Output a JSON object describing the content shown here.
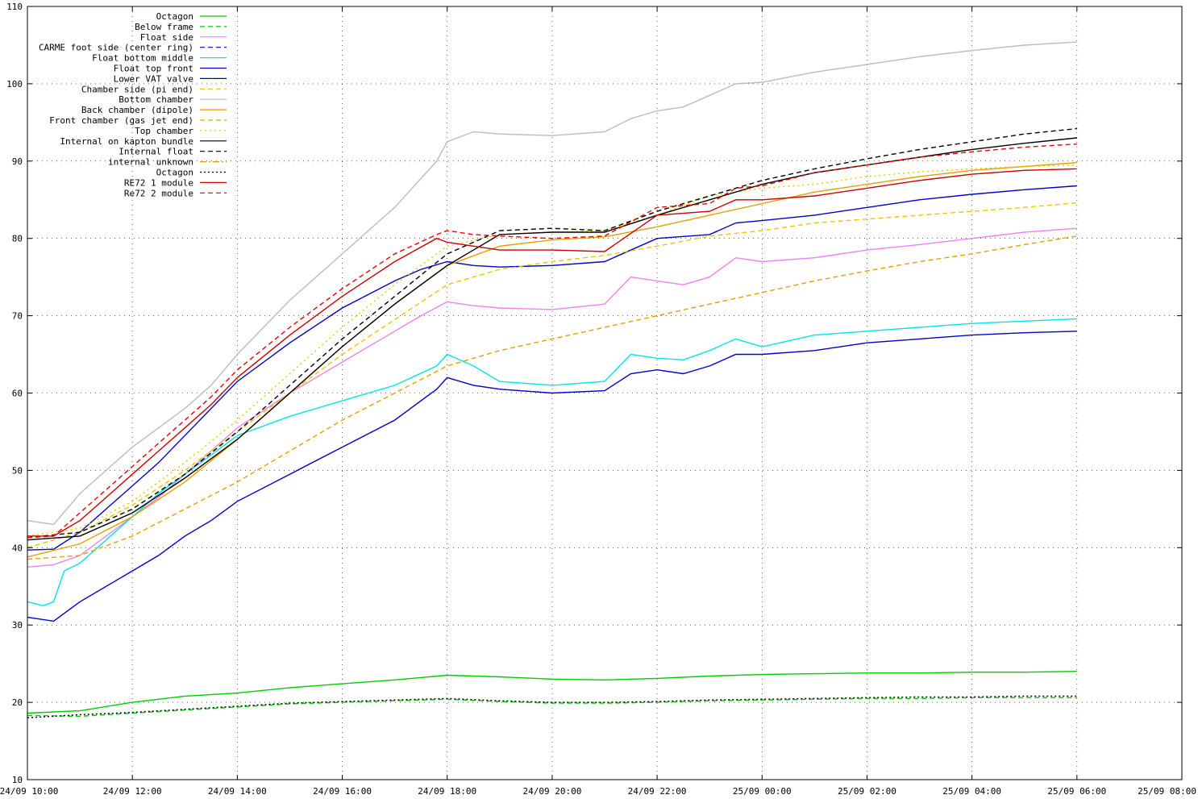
{
  "chart_data": {
    "type": "line",
    "title": "",
    "xlabel": "",
    "ylabel": "",
    "x_tick_labels": [
      "24/09 10:00",
      "24/09 12:00",
      "24/09 14:00",
      "24/09 16:00",
      "24/09 18:00",
      "24/09 20:00",
      "24/09 22:00",
      "25/09 00:00",
      "25/09 02:00",
      "25/09 04:00",
      "25/09 06:00",
      "25/09 08:00"
    ],
    "y_tick_labels": [
      "10",
      "20",
      "30",
      "40",
      "50",
      "60",
      "70",
      "80",
      "90",
      "100",
      "110"
    ],
    "xlim": [
      0,
      22
    ],
    "ylim": [
      10,
      110
    ],
    "x_unit": "hours since 24/09 10:00",
    "grid": true,
    "legend_position": "top-left",
    "series": [
      {
        "name": "Octagon",
        "color": "#00cc00",
        "dash": "solid",
        "x": [
          0,
          1,
          2,
          3,
          4,
          5,
          6,
          7,
          8,
          9,
          10,
          11,
          12,
          13,
          14,
          15,
          16,
          17,
          18,
          19,
          20
        ],
        "y": [
          18.6,
          18.9,
          20.0,
          20.8,
          21.2,
          21.9,
          22.4,
          22.9,
          23.5,
          23.3,
          23.0,
          22.9,
          23.1,
          23.4,
          23.6,
          23.7,
          23.8,
          23.8,
          23.9,
          23.9,
          24.0
        ]
      },
      {
        "name": "Below frame",
        "color": "#00cc00",
        "dash": "6,4",
        "x": [
          0,
          1,
          2,
          3,
          4,
          5,
          6,
          7,
          8,
          9,
          10,
          11,
          12,
          13,
          14,
          15,
          16,
          17,
          18,
          19,
          20
        ],
        "y": [
          18.3,
          18.2,
          18.6,
          19.0,
          19.4,
          19.8,
          20.0,
          20.2,
          20.4,
          20.1,
          19.9,
          19.9,
          20.0,
          20.2,
          20.3,
          20.4,
          20.5,
          20.5,
          20.6,
          20.6,
          20.6
        ]
      },
      {
        "name": "Float side",
        "color": "#ee82ee",
        "dash": "solid",
        "x": [
          0,
          0.5,
          1,
          1.5,
          2,
          2.5,
          3,
          3.5,
          4,
          5,
          6,
          7,
          7.5,
          8,
          8.5,
          9,
          10,
          11,
          11.5,
          12,
          12.5,
          13,
          13.5,
          14,
          15,
          16,
          17,
          18,
          19,
          20
        ],
        "y": [
          37.5,
          37.8,
          39.0,
          41.5,
          44.0,
          46.5,
          49.5,
          52.5,
          55.5,
          60.0,
          64.0,
          68.0,
          70.0,
          71.8,
          71.3,
          71.0,
          70.8,
          71.5,
          75.0,
          74.5,
          74.0,
          75.0,
          77.5,
          77.0,
          77.5,
          78.5,
          79.2,
          80.0,
          80.8,
          81.3
        ]
      },
      {
        "name": "CARME foot side (center ring)",
        "color": "#0000cc",
        "dash": "6,4",
        "x": [],
        "y": []
      },
      {
        "name": "Float bottom middle",
        "color": "#00e5e5",
        "dash": "solid",
        "x": [
          0,
          0.3,
          0.5,
          0.7,
          1,
          1.5,
          2,
          2.5,
          3,
          3.5,
          4,
          5,
          6,
          7,
          7.8,
          8,
          8.5,
          9,
          10,
          11,
          11.5,
          12,
          12.5,
          13,
          13.5,
          14,
          15,
          16,
          17,
          18,
          19,
          20
        ],
        "y": [
          33.0,
          32.5,
          33.0,
          37.0,
          38.0,
          41.0,
          44.0,
          47.0,
          49.5,
          52.0,
          54.5,
          57.0,
          59.0,
          61.0,
          63.5,
          65.0,
          63.5,
          61.5,
          61.0,
          61.5,
          65.0,
          64.5,
          64.3,
          65.5,
          67.0,
          66.0,
          67.5,
          68.0,
          68.5,
          69.0,
          69.3,
          69.6
        ]
      },
      {
        "name": "Float top front",
        "color": "#0000cc",
        "dash": "solid",
        "x": [
          0,
          0.5,
          1,
          1.5,
          2,
          2.5,
          3,
          3.5,
          4,
          5,
          6,
          7,
          7.5,
          8,
          8.5,
          9,
          10,
          11,
          12,
          13,
          13.5,
          14,
          15,
          16,
          17,
          18,
          19,
          20
        ],
        "y": [
          39.7,
          39.8,
          42.0,
          45.0,
          48.0,
          51.0,
          54.5,
          58.0,
          61.5,
          66.5,
          71.0,
          74.5,
          76.0,
          77.0,
          76.5,
          76.3,
          76.5,
          77.0,
          80.0,
          80.5,
          82.0,
          82.3,
          83.0,
          84.0,
          85.0,
          85.7,
          86.3,
          86.8
        ]
      },
      {
        "name": "Lower VAT valve",
        "color": "#0000cc",
        "dash": "solid",
        "x": [
          0,
          0.5,
          1,
          1.5,
          2,
          2.5,
          3,
          3.5,
          4,
          5,
          6,
          7,
          7.8,
          8,
          8.5,
          9,
          10,
          11,
          11.5,
          12,
          12.5,
          13,
          13.5,
          14,
          15,
          16,
          17,
          18,
          19,
          20
        ],
        "y": [
          31.0,
          30.5,
          33.0,
          35.0,
          37.0,
          39.0,
          41.5,
          43.5,
          46.0,
          49.5,
          53.0,
          56.5,
          60.5,
          62.0,
          61.0,
          60.5,
          60.0,
          60.3,
          62.5,
          63.0,
          62.5,
          63.5,
          65.0,
          65.0,
          65.5,
          66.5,
          67.0,
          67.5,
          67.8,
          68.0
        ]
      },
      {
        "name": "Chamber side (pi end)",
        "color": "#e6c800",
        "dash": "6,4",
        "x": [
          0,
          1,
          2,
          3,
          4,
          5,
          6,
          7,
          8,
          9,
          10,
          11,
          12,
          13,
          14,
          15,
          16,
          17,
          18,
          19,
          20
        ],
        "y": [
          40.0,
          42.0,
          45.5,
          50.0,
          55.0,
          60.0,
          65.0,
          69.5,
          74.0,
          76.0,
          77.0,
          77.8,
          79.0,
          80.3,
          81.0,
          82.0,
          82.5,
          83.0,
          83.5,
          84.0,
          84.6
        ]
      },
      {
        "name": "Bottom chamber",
        "color": "#bbbbbb",
        "dash": "solid",
        "x": [
          0,
          0.5,
          1,
          1.5,
          2,
          2.5,
          3,
          3.5,
          4,
          5,
          6,
          7,
          7.8,
          8,
          8.5,
          9,
          10,
          11,
          11.5,
          12,
          12.5,
          13,
          13.5,
          14,
          15,
          16,
          17,
          18,
          19,
          20
        ],
        "y": [
          43.5,
          43.0,
          47.0,
          50.0,
          53.0,
          55.5,
          58.0,
          61.0,
          65.0,
          72.0,
          78.0,
          84.0,
          90.0,
          92.5,
          93.8,
          93.5,
          93.3,
          93.8,
          95.5,
          96.5,
          97.0,
          98.5,
          100.0,
          100.2,
          101.5,
          102.5,
          103.5,
          104.3,
          105.0,
          105.4
        ]
      },
      {
        "name": "Back chamber (dipole)",
        "color": "#e6a000",
        "dash": "solid",
        "x": [
          0,
          1,
          2,
          3,
          4,
          5,
          6,
          7,
          8,
          9,
          10,
          11,
          12,
          13,
          14,
          15,
          16,
          17,
          18,
          19,
          20
        ],
        "y": [
          38.8,
          40.5,
          44.0,
          48.5,
          54.0,
          60.0,
          66.0,
          71.5,
          76.5,
          79.0,
          79.8,
          80.2,
          81.5,
          83.0,
          84.5,
          86.0,
          87.0,
          88.0,
          88.8,
          89.3,
          89.8
        ]
      },
      {
        "name": "Front chamber (gas jet end)",
        "color": "#e6a000",
        "dash": "6,4",
        "x": [
          0,
          1,
          2,
          3,
          4,
          5,
          6,
          7,
          8,
          9,
          10,
          11,
          12,
          13,
          14,
          15,
          16,
          17,
          18,
          19,
          20
        ],
        "y": [
          38.5,
          39.0,
          41.5,
          45.0,
          48.5,
          52.5,
          56.5,
          60.0,
          63.5,
          65.5,
          67.0,
          68.5,
          70.0,
          71.5,
          73.0,
          74.5,
          75.8,
          77.0,
          78.0,
          79.2,
          80.3
        ]
      },
      {
        "name": "Top chamber",
        "color": "#e6c800",
        "dash": "2,4",
        "x": [
          0,
          1,
          2,
          3,
          4,
          5,
          6,
          7,
          8,
          9,
          10,
          11,
          12,
          13,
          14,
          15,
          16,
          17,
          18,
          19,
          20
        ],
        "y": [
          41.5,
          42.5,
          46.0,
          51.0,
          56.5,
          62.5,
          68.5,
          74.0,
          79.0,
          80.5,
          80.8,
          81.0,
          83.0,
          85.5,
          86.5,
          87.0,
          88.0,
          88.6,
          89.0,
          89.3,
          89.5
        ]
      },
      {
        "name": "Internal on kapton bundle",
        "color": "#000000",
        "dash": "solid",
        "x": [
          0,
          1,
          2,
          3,
          4,
          5,
          6,
          7,
          8,
          9,
          10,
          11,
          12,
          13,
          14,
          15,
          16,
          17,
          18,
          19,
          20
        ],
        "y": [
          41.0,
          41.5,
          44.5,
          49.0,
          54.0,
          60.0,
          66.0,
          71.5,
          76.5,
          80.5,
          80.8,
          80.8,
          83.0,
          85.0,
          87.0,
          88.5,
          89.5,
          90.5,
          91.5,
          92.3,
          93.0
        ]
      },
      {
        "name": "Internal float",
        "color": "#000000",
        "dash": "6,4",
        "x": [
          0,
          1,
          2,
          3,
          4,
          5,
          6,
          7,
          8,
          9,
          10,
          11,
          12,
          13,
          14,
          15,
          16,
          17,
          18,
          19,
          20
        ],
        "y": [
          41.3,
          42.0,
          45.0,
          49.5,
          55.0,
          61.0,
          67.0,
          72.5,
          78.0,
          81.0,
          81.3,
          81.0,
          83.5,
          85.5,
          87.5,
          89.0,
          90.3,
          91.5,
          92.5,
          93.5,
          94.2
        ]
      },
      {
        "name": "internal unknown",
        "color": "#e6a000",
        "dash": "8,3,2,3",
        "x": [],
        "y": []
      },
      {
        "name": "Octagon",
        "color": "#000000",
        "dash": "2,3",
        "x": [
          0,
          1,
          2,
          3,
          4,
          5,
          6,
          7,
          8,
          9,
          10,
          11,
          12,
          13,
          14,
          15,
          16,
          17,
          18,
          19,
          20
        ],
        "y": [
          18.0,
          18.4,
          18.7,
          19.1,
          19.5,
          19.9,
          20.1,
          20.3,
          20.5,
          20.2,
          20.0,
          20.0,
          20.1,
          20.3,
          20.4,
          20.5,
          20.6,
          20.7,
          20.7,
          20.8,
          20.8
        ]
      },
      {
        "name": "RE72 1 module",
        "color": "#cc0000",
        "dash": "solid",
        "x": [
          0,
          0.5,
          1,
          1.5,
          2,
          2.5,
          3,
          3.5,
          4,
          5,
          6,
          7,
          7.8,
          8,
          8.5,
          9,
          10,
          11,
          12,
          13,
          13.5,
          14,
          15,
          16,
          17,
          18,
          19,
          20
        ],
        "y": [
          41.5,
          41.5,
          43.5,
          46.5,
          49.5,
          52.5,
          55.5,
          58.5,
          62.0,
          67.5,
          72.5,
          77.0,
          80.0,
          79.5,
          79.0,
          78.5,
          78.5,
          78.3,
          83.0,
          83.5,
          85.0,
          85.0,
          85.5,
          86.5,
          87.5,
          88.3,
          88.8,
          89.0
        ]
      },
      {
        "name": "Re72 2 module",
        "color": "#ee0000",
        "dash": "6,4",
        "x": [
          0,
          0.5,
          1,
          1.5,
          2,
          2.5,
          3,
          3.5,
          4,
          5,
          6,
          7,
          7.8,
          8,
          8.5,
          9,
          10,
          11,
          12,
          13,
          13.5,
          14,
          15,
          16,
          17,
          18,
          19,
          20
        ],
        "y": [
          41.3,
          41.5,
          44.5,
          47.5,
          50.5,
          53.5,
          56.5,
          59.5,
          63.0,
          68.5,
          73.5,
          78.0,
          80.5,
          81.0,
          80.5,
          80.3,
          80.0,
          80.3,
          84.0,
          84.5,
          86.5,
          86.8,
          88.5,
          89.5,
          90.5,
          91.2,
          91.8,
          92.2
        ]
      }
    ]
  }
}
